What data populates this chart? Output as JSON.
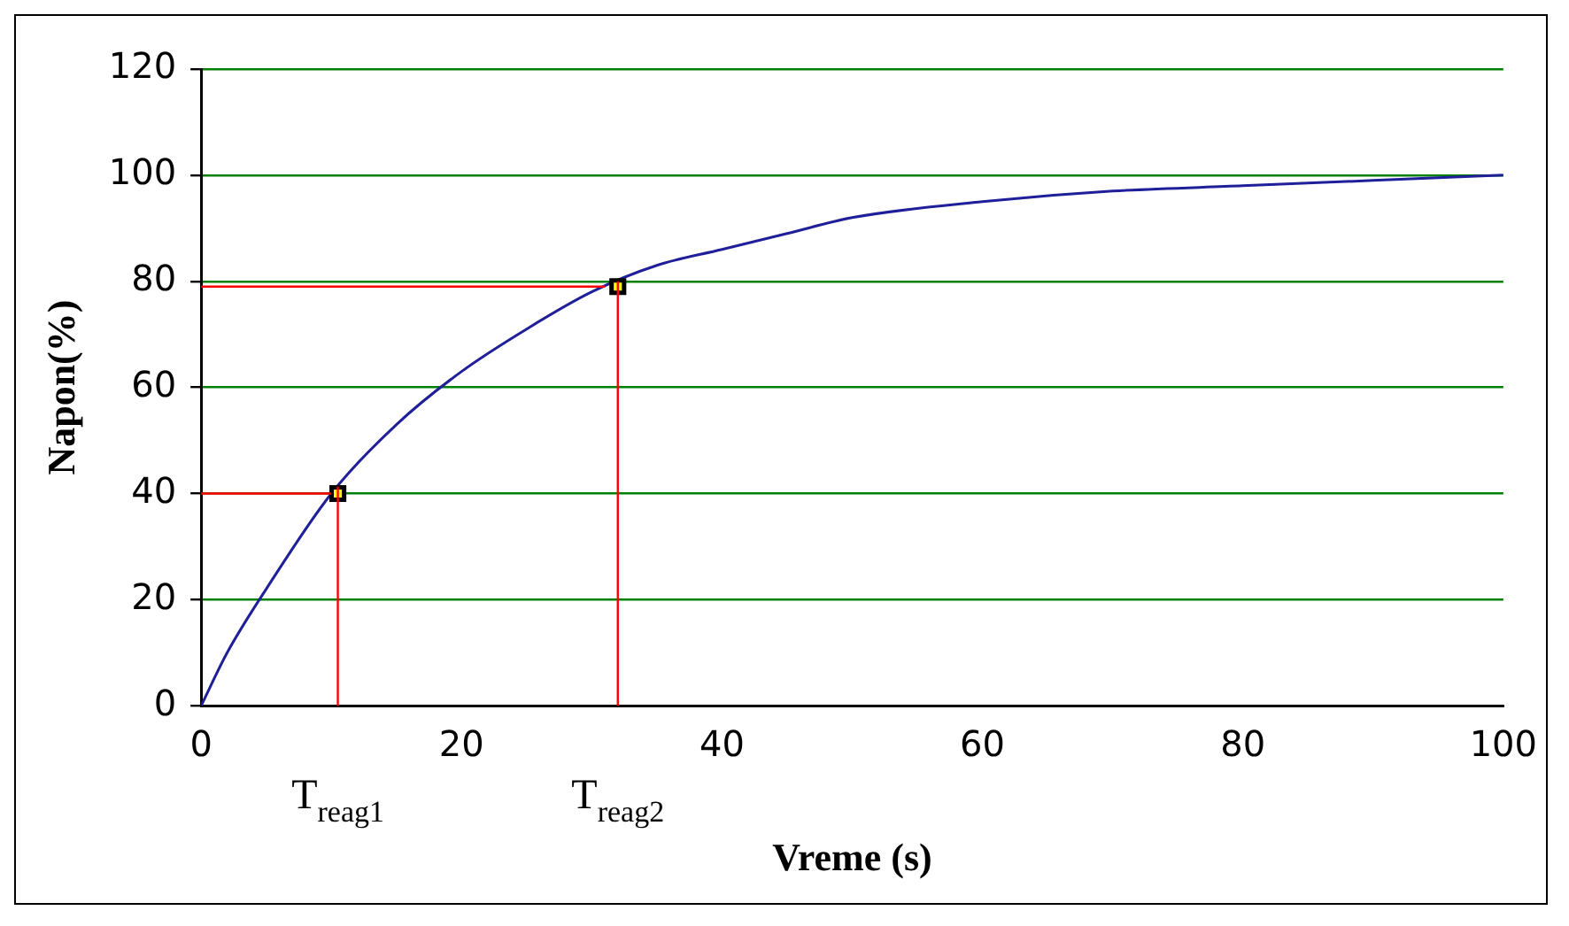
{
  "chart_data": {
    "type": "line",
    "xlabel": "Vreme (s)",
    "ylabel": "Napon(%)",
    "xlim": [
      0,
      100
    ],
    "xticks": [
      0,
      20,
      40,
      60,
      80,
      100
    ],
    "ylim": [
      0,
      120
    ],
    "yticks": [
      0,
      20,
      40,
      60,
      80,
      100,
      120
    ],
    "grid": "y",
    "legend": false,
    "series": [
      {
        "color": "#1f1f99",
        "x": [
          0,
          2,
          5,
          10,
          15,
          20,
          25,
          30,
          35,
          40,
          45,
          50,
          60,
          70,
          80,
          90,
          100
        ],
        "values": [
          0,
          10,
          22,
          40,
          53,
          63,
          71,
          78,
          83,
          86,
          89,
          92,
          95,
          97,
          98,
          99,
          100
        ],
        "marker": "none"
      },
      {
        "type": "scatter",
        "color": "#ffff00",
        "x": [
          10.5,
          32
        ],
        "values": [
          40,
          79
        ],
        "marker": "square"
      }
    ],
    "ref_lines": [
      {
        "axis": "y",
        "value": 40,
        "color": "#ff0000"
      },
      {
        "axis": "y",
        "value": 79,
        "color": "#ff0000"
      },
      {
        "axis": "x",
        "value": 10.5,
        "label": "T$_{reag1}$",
        "color": "#ff0000"
      },
      {
        "axis": "x",
        "value": 32,
        "label": "T$_{reag2}$",
        "color": "#ff0000"
      }
    ]
  }
}
